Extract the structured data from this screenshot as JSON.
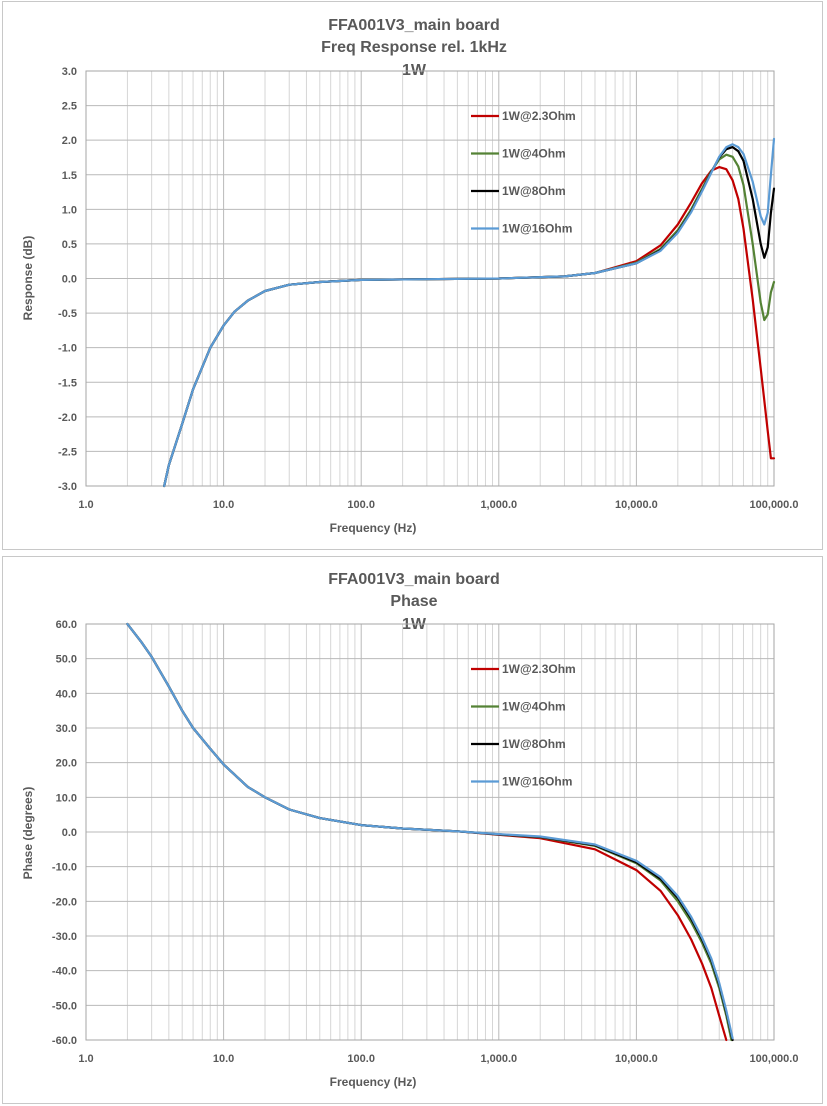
{
  "chart_data": [
    {
      "type": "line",
      "title_lines": [
        "FFA001V3_main board",
        "Freq Response rel. 1kHz",
        "1W"
      ],
      "xlabel": "Frequency (Hz)",
      "ylabel": "Response (dB)",
      "xscale": "log",
      "xlim": [
        1,
        100000
      ],
      "ylim": [
        -3.0,
        3.0
      ],
      "grid": true,
      "legend_position": "top-right",
      "x_tick_labels": [
        "1.0",
        "10.0",
        "100.0",
        "1,000.0",
        "10,000.0",
        "100,000.0"
      ],
      "y_tick_labels": [
        "3.0",
        "2.5",
        "2.0",
        "1.5",
        "1.0",
        "0.5",
        "0.0",
        "-0.5",
        "-1.0",
        "-1.5",
        "-2.0",
        "-2.5",
        "-3.0"
      ],
      "series": [
        {
          "name": "1W@2.3Ohm",
          "color": "#c00000",
          "x": [
            3.7,
            4,
            5,
            6,
            7,
            8,
            10,
            12,
            15,
            20,
            30,
            50,
            100,
            300,
            1000,
            3000,
            5000,
            10000,
            15000,
            20000,
            25000,
            30000,
            35000,
            40000,
            45000,
            50000,
            55000,
            60000,
            70000,
            80000,
            90000,
            95000,
            100000
          ],
          "y": [
            -3.0,
            -2.7,
            -2.1,
            -1.6,
            -1.28,
            -1.0,
            -0.68,
            -0.48,
            -0.32,
            -0.18,
            -0.09,
            -0.05,
            -0.02,
            -0.01,
            0.0,
            0.03,
            0.08,
            0.25,
            0.48,
            0.78,
            1.1,
            1.38,
            1.56,
            1.61,
            1.58,
            1.42,
            1.15,
            0.72,
            -0.3,
            -1.3,
            -2.2,
            -2.6,
            -2.6
          ]
        },
        {
          "name": "1W@4Ohm",
          "color": "#548235",
          "x": [
            3.7,
            4,
            5,
            6,
            7,
            8,
            10,
            12,
            15,
            20,
            30,
            50,
            100,
            300,
            1000,
            3000,
            5000,
            10000,
            15000,
            20000,
            25000,
            30000,
            35000,
            40000,
            45000,
            50000,
            55000,
            60000,
            70000,
            80000,
            85000,
            90000,
            95000,
            100000
          ],
          "y": [
            -3.0,
            -2.7,
            -2.1,
            -1.6,
            -1.28,
            -1.0,
            -0.68,
            -0.48,
            -0.32,
            -0.18,
            -0.09,
            -0.05,
            -0.02,
            -0.01,
            0.0,
            0.03,
            0.08,
            0.23,
            0.43,
            0.7,
            1.0,
            1.3,
            1.55,
            1.72,
            1.79,
            1.76,
            1.62,
            1.35,
            0.5,
            -0.35,
            -0.6,
            -0.52,
            -0.2,
            -0.05
          ]
        },
        {
          "name": "1W@8Ohm",
          "color": "#000000",
          "x": [
            3.7,
            4,
            5,
            6,
            7,
            8,
            10,
            12,
            15,
            20,
            30,
            50,
            100,
            300,
            1000,
            3000,
            5000,
            10000,
            15000,
            20000,
            25000,
            30000,
            35000,
            40000,
            45000,
            50000,
            55000,
            60000,
            70000,
            80000,
            85000,
            90000,
            95000,
            100000
          ],
          "y": [
            -3.0,
            -2.7,
            -2.1,
            -1.6,
            -1.28,
            -1.0,
            -0.68,
            -0.48,
            -0.32,
            -0.18,
            -0.09,
            -0.05,
            -0.02,
            -0.01,
            0.0,
            0.03,
            0.08,
            0.22,
            0.41,
            0.67,
            0.97,
            1.27,
            1.54,
            1.75,
            1.87,
            1.9,
            1.84,
            1.7,
            1.15,
            0.5,
            0.3,
            0.45,
            0.95,
            1.3
          ]
        },
        {
          "name": "1W@16Ohm",
          "color": "#5b9bd5",
          "x": [
            3.7,
            4,
            5,
            6,
            7,
            8,
            10,
            12,
            15,
            20,
            30,
            50,
            100,
            300,
            1000,
            3000,
            5000,
            10000,
            15000,
            20000,
            25000,
            30000,
            35000,
            40000,
            45000,
            50000,
            55000,
            60000,
            70000,
            80000,
            85000,
            90000,
            95000,
            100000
          ],
          "y": [
            -3.0,
            -2.7,
            -2.1,
            -1.6,
            -1.28,
            -1.0,
            -0.68,
            -0.48,
            -0.32,
            -0.18,
            -0.09,
            -0.05,
            -0.02,
            -0.01,
            0.0,
            0.03,
            0.08,
            0.22,
            0.4,
            0.66,
            0.96,
            1.26,
            1.53,
            1.76,
            1.9,
            1.94,
            1.9,
            1.8,
            1.4,
            0.9,
            0.78,
            0.95,
            1.5,
            2.02
          ]
        }
      ]
    },
    {
      "type": "line",
      "title_lines": [
        "FFA001V3_main board",
        "Phase",
        "1W"
      ],
      "xlabel": "Frequency (Hz)",
      "ylabel": "Phase (degrees)",
      "xscale": "log",
      "xlim": [
        1,
        100000
      ],
      "ylim": [
        -60.0,
        60.0
      ],
      "grid": true,
      "legend_position": "top-right",
      "x_tick_labels": [
        "1.0",
        "10.0",
        "100.0",
        "1,000.0",
        "10,000.0",
        "100,000.0"
      ],
      "y_tick_labels": [
        "60.0",
        "50.0",
        "40.0",
        "30.0",
        "20.0",
        "10.0",
        "0.0",
        "-10.0",
        "-20.0",
        "-30.0",
        "-40.0",
        "-50.0",
        "-60.0"
      ],
      "series": [
        {
          "name": "1W@2.3Ohm",
          "color": "#c00000",
          "x": [
            2,
            2.5,
            3,
            4,
            5,
            6,
            8,
            10,
            15,
            20,
            30,
            50,
            100,
            200,
            500,
            1000,
            2000,
            5000,
            10000,
            15000,
            20000,
            25000,
            30000,
            35000,
            40000,
            45000
          ],
          "y": [
            60,
            55,
            50.5,
            42,
            35,
            30,
            24,
            19.5,
            13,
            10,
            6.5,
            4,
            2,
            1,
            0.2,
            -0.8,
            -1.8,
            -5,
            -11,
            -17,
            -24,
            -31,
            -38,
            -45,
            -53,
            -60
          ]
        },
        {
          "name": "1W@4Ohm",
          "color": "#548235",
          "x": [
            2,
            2.5,
            3,
            4,
            5,
            6,
            8,
            10,
            15,
            20,
            30,
            50,
            100,
            200,
            500,
            1000,
            2000,
            5000,
            10000,
            15000,
            20000,
            25000,
            30000,
            35000,
            40000,
            45000,
            49000
          ],
          "y": [
            60,
            55,
            50.5,
            42,
            35,
            30,
            24,
            19.5,
            13,
            10,
            6.5,
            4,
            2,
            1,
            0.2,
            -0.7,
            -1.5,
            -4,
            -9,
            -14,
            -20,
            -26,
            -32,
            -38,
            -45,
            -53,
            -60
          ]
        },
        {
          "name": "1W@8Ohm",
          "color": "#000000",
          "x": [
            2,
            2.5,
            3,
            4,
            5,
            6,
            8,
            10,
            15,
            20,
            30,
            50,
            100,
            200,
            500,
            1000,
            2000,
            5000,
            10000,
            15000,
            20000,
            25000,
            30000,
            35000,
            40000,
            45000,
            50000
          ],
          "y": [
            60,
            55,
            50.5,
            42,
            35,
            30,
            24,
            19.5,
            13,
            10,
            6.5,
            4,
            2,
            1,
            0.2,
            -0.7,
            -1.4,
            -3.8,
            -8.7,
            -13.5,
            -19,
            -25,
            -31,
            -37,
            -44,
            -52,
            -60
          ]
        },
        {
          "name": "1W@16Ohm",
          "color": "#5b9bd5",
          "x": [
            2,
            2.5,
            3,
            4,
            5,
            6,
            8,
            10,
            15,
            20,
            30,
            50,
            100,
            200,
            500,
            1000,
            2000,
            5000,
            10000,
            15000,
            20000,
            25000,
            30000,
            35000,
            40000,
            45000,
            50000
          ],
          "y": [
            60,
            55,
            50.5,
            42,
            35,
            30,
            24,
            19.5,
            13,
            10,
            6.5,
            4,
            2,
            1,
            0.2,
            -0.6,
            -1.3,
            -3.6,
            -8.3,
            -13,
            -18.5,
            -24.5,
            -30.5,
            -36.5,
            -43.5,
            -51.5,
            -59.5
          ]
        }
      ]
    }
  ]
}
